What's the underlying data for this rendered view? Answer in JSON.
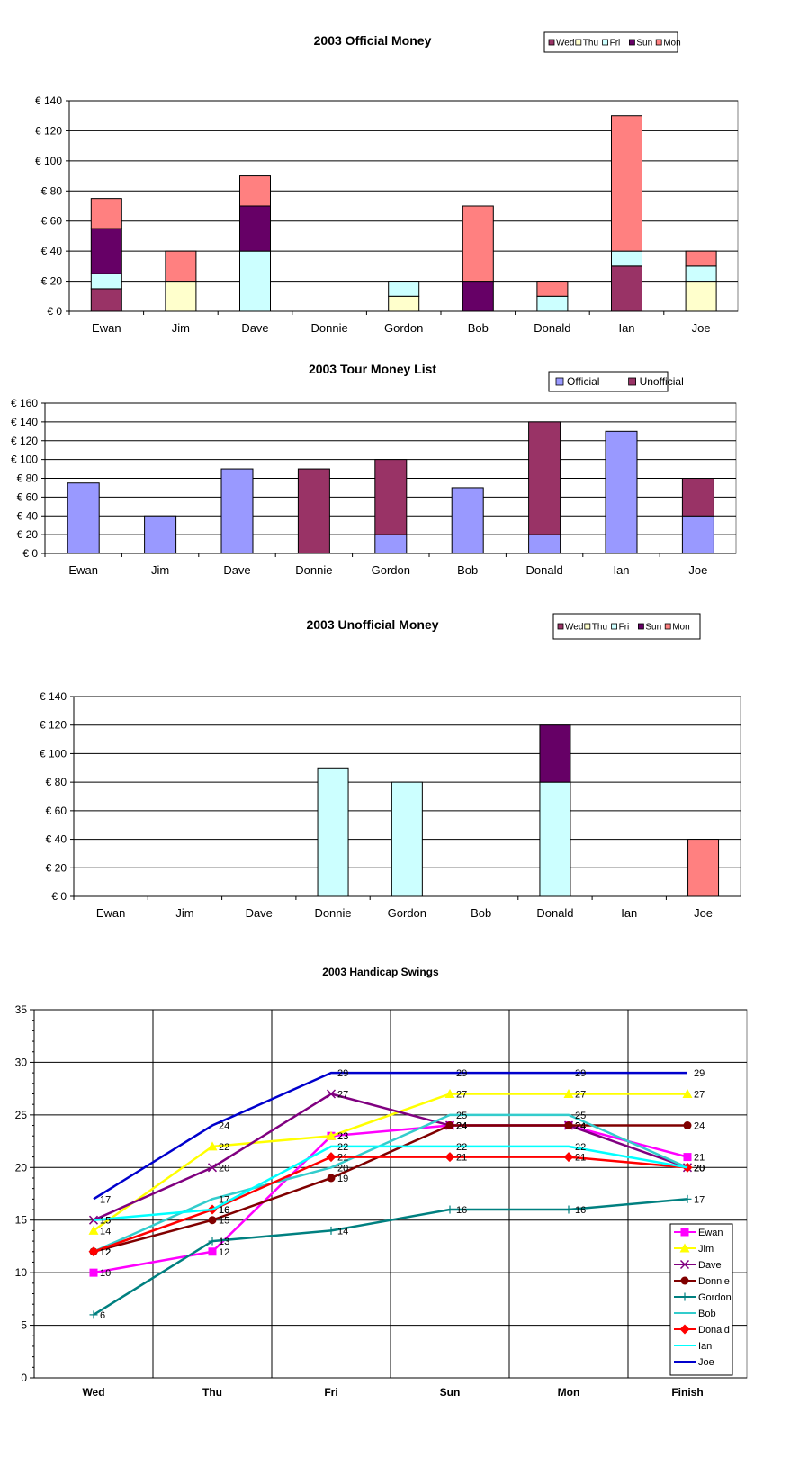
{
  "colors": {
    "Wed": "#993366",
    "Thu": "#FFFFCC",
    "Fri": "#CCFFFF",
    "Sun": "#660066",
    "Mon": "#FF8080",
    "Official": "#9999FF",
    "Unofficial": "#993366",
    "Ewan": "#FF00FF",
    "Jim": "#FFFF00",
    "Dave": "#800080",
    "Donnie": "#800000",
    "Gordon": "#008080",
    "Bob": "#33CCCC",
    "Donald": "#FF0000",
    "Ian": "#00FFFF",
    "Joe": "#0000CC"
  },
  "chart_data": [
    {
      "type": "bar",
      "stacked": true,
      "title": "2003 Official Money",
      "categories": [
        "Ewan",
        "Jim",
        "Dave",
        "Donnie",
        "Gordon",
        "Bob",
        "Donald",
        "Ian",
        "Joe"
      ],
      "series": [
        {
          "name": "Wed",
          "values": [
            15,
            0,
            0,
            0,
            0,
            0,
            0,
            30,
            0
          ]
        },
        {
          "name": "Thu",
          "values": [
            0,
            20,
            0,
            0,
            10,
            0,
            0,
            0,
            20
          ]
        },
        {
          "name": "Fri",
          "values": [
            10,
            0,
            40,
            0,
            10,
            0,
            10,
            10,
            10
          ]
        },
        {
          "name": "Sun",
          "values": [
            30,
            0,
            30,
            0,
            0,
            20,
            0,
            0,
            0
          ]
        },
        {
          "name": "Mon",
          "values": [
            20,
            20,
            20,
            0,
            0,
            50,
            10,
            90,
            10
          ]
        }
      ],
      "ylim": [
        0,
        140
      ],
      "yticks": [
        "€ 0",
        "€ 20",
        "€ 40",
        "€ 60",
        "€ 80",
        "€ 100",
        "€ 120",
        "€ 140"
      ],
      "legend": "top-right",
      "grid": true
    },
    {
      "type": "bar",
      "stacked": true,
      "title": "2003 Tour Money List",
      "categories": [
        "Ewan",
        "Jim",
        "Dave",
        "Donnie",
        "Gordon",
        "Bob",
        "Donald",
        "Ian",
        "Joe"
      ],
      "series": [
        {
          "name": "Official",
          "values": [
            75,
            40,
            90,
            0,
            20,
            70,
            20,
            130,
            40
          ]
        },
        {
          "name": "Unofficial",
          "values": [
            0,
            0,
            0,
            90,
            80,
            0,
            120,
            0,
            40
          ]
        }
      ],
      "ylim": [
        0,
        160
      ],
      "yticks": [
        "€ 0",
        "€ 20",
        "€ 40",
        "€ 60",
        "€ 80",
        "€ 100",
        "€ 120",
        "€ 140",
        "€ 160"
      ],
      "legend": "top-right",
      "grid": true
    },
    {
      "type": "bar",
      "stacked": true,
      "title": "2003 Unofficial Money",
      "categories": [
        "Ewan",
        "Jim",
        "Dave",
        "Donnie",
        "Gordon",
        "Bob",
        "Donald",
        "Ian",
        "Joe"
      ],
      "series": [
        {
          "name": "Wed",
          "values": [
            0,
            0,
            0,
            0,
            0,
            0,
            0,
            0,
            0
          ]
        },
        {
          "name": "Thu",
          "values": [
            0,
            0,
            0,
            0,
            0,
            0,
            0,
            0,
            0
          ]
        },
        {
          "name": "Fri",
          "values": [
            0,
            0,
            0,
            90,
            80,
            0,
            80,
            0,
            0
          ]
        },
        {
          "name": "Sun",
          "values": [
            0,
            0,
            0,
            0,
            0,
            0,
            40,
            0,
            0
          ]
        },
        {
          "name": "Mon",
          "values": [
            0,
            0,
            0,
            0,
            0,
            0,
            0,
            0,
            40
          ]
        }
      ],
      "ylim": [
        0,
        140
      ],
      "yticks": [
        "€ 0",
        "€ 20",
        "€ 40",
        "€ 60",
        "€ 80",
        "€ 100",
        "€ 120",
        "€ 140"
      ],
      "legend": "top-right",
      "grid": true
    },
    {
      "type": "line",
      "title": "2003 Handicap Swings",
      "categories": [
        "Wed",
        "Thu",
        "Fri",
        "Sun",
        "Mon",
        "Finish"
      ],
      "series": [
        {
          "name": "Ewan",
          "marker": "square",
          "values": [
            10,
            12,
            23,
            24,
            24,
            21
          ]
        },
        {
          "name": "Jim",
          "marker": "triangle",
          "values": [
            14,
            22,
            23,
            27,
            27,
            27
          ]
        },
        {
          "name": "Dave",
          "marker": "x",
          "values": [
            15,
            20,
            27,
            24,
            24,
            20
          ]
        },
        {
          "name": "Donnie",
          "marker": "circle",
          "values": [
            12,
            15,
            19,
            24,
            24,
            24
          ]
        },
        {
          "name": "Gordon",
          "marker": "plus",
          "values": [
            6,
            13,
            14,
            16,
            16,
            17
          ]
        },
        {
          "name": "Bob",
          "marker": "none",
          "values": [
            12,
            17,
            20,
            25,
            25,
            20
          ]
        },
        {
          "name": "Donald",
          "marker": "diamond",
          "values": [
            12,
            16,
            21,
            21,
            21,
            20
          ]
        },
        {
          "name": "Ian",
          "marker": "none",
          "values": [
            15,
            16,
            22,
            22,
            22,
            20
          ]
        },
        {
          "name": "Joe",
          "marker": "none",
          "values": [
            17,
            24,
            29,
            29,
            29,
            29
          ]
        }
      ],
      "ylim": [
        0,
        35
      ],
      "yticks": [
        "0",
        "5",
        "10",
        "15",
        "20",
        "25",
        "30",
        "35"
      ],
      "legend": "bottom-right",
      "grid": true
    }
  ]
}
